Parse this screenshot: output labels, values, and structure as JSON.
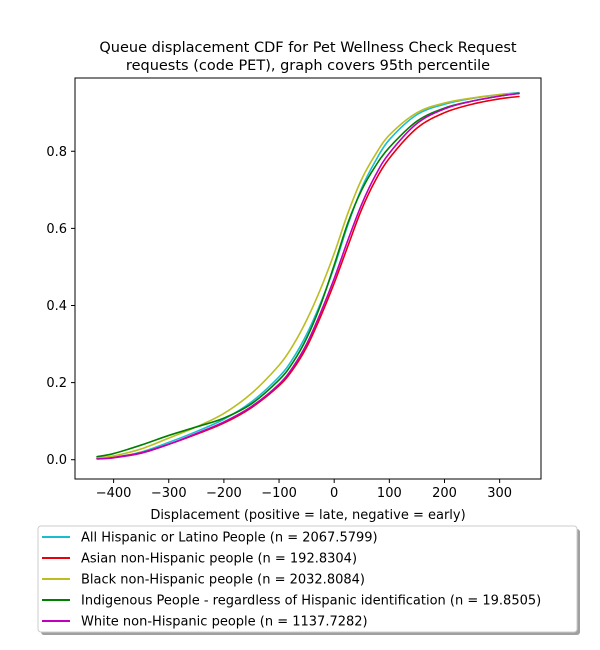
{
  "chart_data": {
    "type": "line",
    "title": "Queue displacement CDF for Pet Wellness Check Request requests (code PET), graph covers 95th percentile",
    "title_lines": [
      "Queue displacement CDF for Pet Wellness Check Request",
      "requests (code PET), graph covers 95th percentile"
    ],
    "xlabel": "Displacement (positive = late, negative = early)",
    "ylabel": "",
    "xlim": [
      -470,
      375
    ],
    "ylim": [
      -0.05,
      0.99
    ],
    "x_ticks": [
      -400,
      -300,
      -200,
      -100,
      0,
      100,
      200,
      300
    ],
    "x_tick_labels": [
      "−400",
      "−300",
      "−200",
      "−100",
      "0",
      "100",
      "200",
      "300"
    ],
    "y_ticks": [
      0.0,
      0.2,
      0.4,
      0.6,
      0.8
    ],
    "y_tick_labels": [
      "0.0",
      "0.2",
      "0.4",
      "0.6",
      "0.8"
    ],
    "grid": false,
    "legend_position": "below plot",
    "series": [
      {
        "name": "All Hispanic or Latino People (n = 2067.5799)",
        "color": "#17becf",
        "x": [
          -430,
          -400,
          -350,
          -300,
          -250,
          -200,
          -150,
          -100,
          -75,
          -50,
          -25,
          0,
          25,
          50,
          75,
          100,
          150,
          200,
          250,
          300,
          335
        ],
        "y": [
          0.003,
          0.006,
          0.02,
          0.045,
          0.073,
          0.105,
          0.15,
          0.215,
          0.262,
          0.325,
          0.405,
          0.5,
          0.61,
          0.705,
          0.775,
          0.83,
          0.895,
          0.922,
          0.937,
          0.947,
          0.952
        ]
      },
      {
        "name": "Asian non-Hispanic people (n = 192.8304)",
        "color": "#e8000b",
        "x": [
          -430,
          -400,
          -350,
          -300,
          -250,
          -200,
          -150,
          -100,
          -75,
          -50,
          -25,
          0,
          25,
          50,
          75,
          100,
          150,
          200,
          250,
          300,
          335
        ],
        "y": [
          0.003,
          0.006,
          0.018,
          0.04,
          0.066,
          0.095,
          0.135,
          0.192,
          0.234,
          0.292,
          0.37,
          0.458,
          0.555,
          0.65,
          0.725,
          0.782,
          0.86,
          0.9,
          0.922,
          0.936,
          0.942
        ]
      },
      {
        "name": "Black non-Hispanic people (n = 2032.8084)",
        "color": "#bcbd22",
        "x": [
          -430,
          -400,
          -350,
          -300,
          -250,
          -200,
          -150,
          -100,
          -75,
          -50,
          -25,
          0,
          25,
          50,
          75,
          100,
          150,
          200,
          250,
          300,
          335
        ],
        "y": [
          0.005,
          0.01,
          0.028,
          0.056,
          0.085,
          0.12,
          0.172,
          0.245,
          0.296,
          0.362,
          0.442,
          0.535,
          0.64,
          0.728,
          0.792,
          0.842,
          0.9,
          0.925,
          0.938,
          0.947,
          0.95
        ]
      },
      {
        "name": "Indigenous People - regardless of Hispanic identification (n = 19.8505)",
        "color": "#008000",
        "x": [
          -430,
          -400,
          -350,
          -300,
          -250,
          -200,
          -150,
          -100,
          -75,
          -50,
          -25,
          0,
          25,
          50,
          75,
          100,
          150,
          200,
          250,
          300,
          335
        ],
        "y": [
          0.008,
          0.016,
          0.038,
          0.063,
          0.085,
          0.108,
          0.145,
          0.207,
          0.252,
          0.315,
          0.4,
          0.505,
          0.615,
          0.7,
          0.762,
          0.81,
          0.878,
          0.912,
          0.93,
          0.943,
          0.95
        ]
      },
      {
        "name": "White non-Hispanic people (n = 1137.7282)",
        "color": "#bf00bf",
        "x": [
          -430,
          -400,
          -350,
          -300,
          -250,
          -200,
          -150,
          -100,
          -75,
          -50,
          -25,
          0,
          25,
          50,
          75,
          100,
          150,
          200,
          250,
          300,
          335
        ],
        "y": [
          0.002,
          0.005,
          0.017,
          0.04,
          0.068,
          0.098,
          0.138,
          0.196,
          0.24,
          0.3,
          0.38,
          0.47,
          0.57,
          0.663,
          0.738,
          0.795,
          0.872,
          0.91,
          0.93,
          0.943,
          0.95
        ]
      }
    ]
  }
}
